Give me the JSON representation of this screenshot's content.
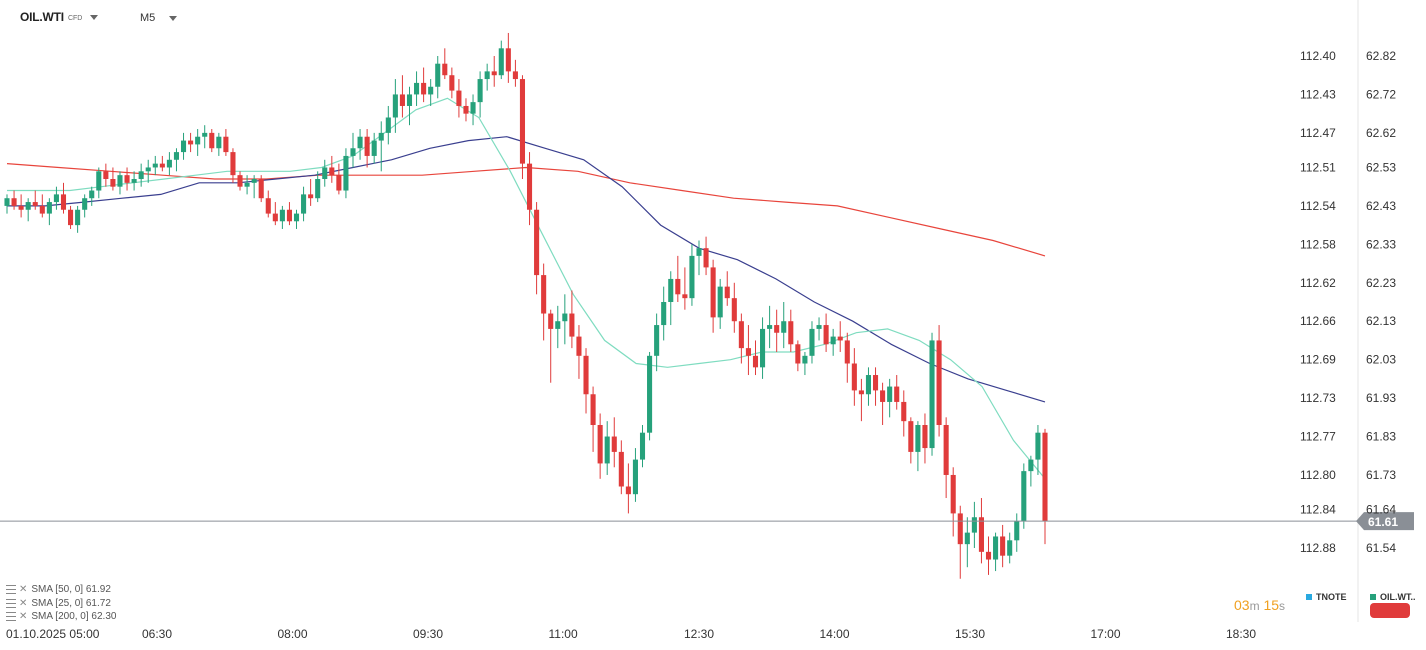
{
  "header": {
    "symbol": "OIL.WTI",
    "symbol_type": "CFD",
    "timeframe": "M5"
  },
  "indicators": [
    {
      "text": "SMA  [50,  0]  61.92"
    },
    {
      "text": "SMA  [25,  0]  61.72"
    },
    {
      "text": "SMA  [200,  0]  62.30"
    }
  ],
  "timer": {
    "minutes": "03",
    "m": "m",
    "seconds": "15",
    "s": "s"
  },
  "legend": {
    "tnote": "TNOTE",
    "oil": "OIL.WT.."
  },
  "colors": {
    "up": "#26a17b",
    "down": "#e03b3b",
    "sma25": "#7fdcc0",
    "sma50": "#3a3f8f",
    "sma200": "#e8453c",
    "tnote": "#29a9e0"
  },
  "chart_data": {
    "type": "candlestick",
    "symbol": "OIL.WTI",
    "timeframe": "M5",
    "x_ticks": [
      "01.10.2025  05:00",
      "06:30",
      "08:00",
      "09:30",
      "11:00",
      "12:30",
      "14:00",
      "15:30",
      "17:00",
      "18:30"
    ],
    "y_right_ticks": [
      62.82,
      62.72,
      62.62,
      62.53,
      62.43,
      62.33,
      62.23,
      62.13,
      62.03,
      61.93,
      61.83,
      61.73,
      61.64,
      61.54
    ],
    "y_left_ticks": [
      "112.40",
      "112.43",
      "112.47",
      "112.51",
      "112.54",
      "112.58",
      "112.62",
      "112.66",
      "112.69",
      "112.73",
      "112.77",
      "112.80",
      "112.84",
      "112.88"
    ],
    "ylim": [
      61.43,
      62.95
    ],
    "current_price": "61.61",
    "ohlc": [
      [
        62.43,
        62.46,
        62.41,
        62.45
      ],
      [
        62.45,
        62.47,
        62.42,
        62.43
      ],
      [
        62.43,
        62.46,
        62.4,
        62.42
      ],
      [
        62.42,
        62.45,
        62.39,
        62.44
      ],
      [
        62.44,
        62.47,
        62.42,
        62.43
      ],
      [
        62.43,
        62.46,
        62.4,
        62.41
      ],
      [
        62.41,
        62.45,
        62.38,
        62.44
      ],
      [
        62.44,
        62.48,
        62.42,
        62.46
      ],
      [
        62.46,
        62.49,
        62.41,
        62.42
      ],
      [
        62.42,
        62.43,
        62.37,
        62.38
      ],
      [
        62.38,
        62.43,
        62.36,
        62.42
      ],
      [
        62.42,
        62.46,
        62.4,
        62.45
      ],
      [
        62.45,
        62.48,
        62.43,
        62.47
      ],
      [
        62.47,
        62.53,
        62.45,
        62.52
      ],
      [
        62.52,
        62.54,
        62.48,
        62.5
      ],
      [
        62.5,
        62.53,
        62.47,
        62.48
      ],
      [
        62.48,
        62.52,
        62.46,
        62.51
      ],
      [
        62.51,
        62.53,
        62.47,
        62.49
      ],
      [
        62.49,
        62.52,
        62.47,
        62.5
      ],
      [
        62.5,
        62.54,
        62.48,
        62.52
      ],
      [
        62.52,
        62.55,
        62.49,
        62.53
      ],
      [
        62.53,
        62.56,
        62.51,
        62.54
      ],
      [
        62.54,
        62.56,
        62.52,
        62.53
      ],
      [
        62.53,
        62.57,
        62.51,
        62.55
      ],
      [
        62.55,
        62.58,
        62.52,
        62.57
      ],
      [
        62.57,
        62.62,
        62.55,
        62.6
      ],
      [
        62.6,
        62.62,
        62.57,
        62.59
      ],
      [
        62.59,
        62.63,
        62.56,
        62.61
      ],
      [
        62.61,
        62.64,
        62.58,
        62.62
      ],
      [
        62.62,
        62.63,
        62.57,
        62.58
      ],
      [
        62.58,
        62.62,
        62.56,
        62.61
      ],
      [
        62.61,
        62.63,
        62.56,
        62.57
      ],
      [
        62.57,
        62.58,
        62.49,
        62.51
      ],
      [
        62.51,
        62.52,
        62.47,
        62.48
      ],
      [
        62.48,
        62.51,
        62.46,
        62.49
      ],
      [
        62.49,
        62.51,
        62.45,
        62.5
      ],
      [
        62.5,
        62.51,
        62.44,
        62.45
      ],
      [
        62.45,
        62.47,
        62.4,
        62.41
      ],
      [
        62.41,
        62.44,
        62.38,
        62.39
      ],
      [
        62.39,
        62.43,
        62.37,
        62.42
      ],
      [
        62.42,
        62.44,
        62.38,
        62.39
      ],
      [
        62.39,
        62.42,
        62.37,
        62.41
      ],
      [
        62.41,
        62.48,
        62.39,
        62.46
      ],
      [
        62.46,
        62.5,
        62.43,
        62.45
      ],
      [
        62.45,
        62.52,
        62.44,
        62.5
      ],
      [
        62.5,
        62.55,
        62.48,
        62.53
      ],
      [
        62.53,
        62.56,
        62.49,
        62.51
      ],
      [
        62.51,
        62.54,
        62.46,
        62.47
      ],
      [
        62.47,
        62.58,
        62.45,
        62.56
      ],
      [
        62.56,
        62.62,
        62.53,
        62.58
      ],
      [
        62.58,
        62.63,
        62.55,
        62.61
      ],
      [
        62.61,
        62.63,
        62.53,
        62.56
      ],
      [
        62.56,
        62.62,
        62.54,
        62.6
      ],
      [
        62.6,
        62.65,
        62.52,
        62.62
      ],
      [
        62.62,
        62.69,
        62.59,
        62.66
      ],
      [
        62.66,
        62.76,
        62.62,
        62.72
      ],
      [
        62.72,
        62.77,
        62.66,
        62.69
      ],
      [
        62.69,
        62.74,
        62.64,
        62.72
      ],
      [
        62.72,
        62.78,
        62.69,
        62.75
      ],
      [
        62.75,
        62.79,
        62.7,
        62.72
      ],
      [
        62.72,
        62.76,
        62.69,
        62.74
      ],
      [
        62.74,
        62.82,
        62.71,
        62.8
      ],
      [
        62.8,
        62.84,
        62.76,
        62.77
      ],
      [
        62.77,
        62.79,
        62.71,
        62.73
      ],
      [
        62.73,
        62.76,
        62.66,
        62.69
      ],
      [
        62.69,
        62.71,
        62.65,
        62.67
      ],
      [
        62.67,
        62.72,
        62.64,
        62.7
      ],
      [
        62.7,
        62.78,
        62.66,
        62.76
      ],
      [
        62.76,
        62.8,
        62.73,
        62.78
      ],
      [
        62.78,
        62.82,
        62.74,
        62.77
      ],
      [
        62.77,
        62.86,
        62.76,
        62.84
      ],
      [
        62.84,
        62.88,
        62.75,
        62.78
      ],
      [
        62.78,
        62.81,
        62.74,
        62.76
      ],
      [
        62.76,
        62.77,
        62.5,
        62.54
      ],
      [
        62.54,
        62.57,
        62.38,
        62.42
      ],
      [
        62.42,
        62.44,
        62.2,
        62.25
      ],
      [
        62.25,
        62.28,
        62.08,
        62.15
      ],
      [
        62.15,
        62.16,
        61.97,
        62.11
      ],
      [
        62.11,
        62.17,
        62.06,
        62.13
      ],
      [
        62.13,
        62.2,
        62.07,
        62.15
      ],
      [
        62.15,
        62.21,
        62.06,
        62.09
      ],
      [
        62.09,
        62.12,
        61.98,
        62.04
      ],
      [
        62.04,
        62.06,
        61.89,
        61.94
      ],
      [
        61.94,
        61.96,
        61.79,
        61.86
      ],
      [
        61.86,
        61.89,
        61.72,
        61.76
      ],
      [
        61.76,
        61.87,
        61.73,
        61.83
      ],
      [
        61.83,
        61.88,
        61.75,
        61.79
      ],
      [
        61.79,
        61.82,
        61.68,
        61.7
      ],
      [
        61.7,
        61.76,
        61.63,
        61.68
      ],
      [
        61.68,
        61.8,
        61.66,
        61.77
      ],
      [
        61.77,
        61.86,
        61.75,
        61.84
      ],
      [
        61.84,
        62.05,
        61.82,
        62.04
      ],
      [
        62.04,
        62.15,
        62.0,
        62.12
      ],
      [
        62.12,
        62.22,
        62.08,
        62.18
      ],
      [
        62.18,
        62.26,
        62.12,
        62.24
      ],
      [
        62.24,
        62.3,
        62.18,
        62.2
      ],
      [
        62.2,
        62.27,
        62.16,
        62.19
      ],
      [
        62.19,
        62.33,
        62.17,
        62.3
      ],
      [
        62.3,
        62.34,
        62.25,
        62.32
      ],
      [
        62.32,
        62.35,
        62.25,
        62.27
      ],
      [
        62.27,
        62.29,
        62.1,
        62.14
      ],
      [
        62.14,
        62.24,
        62.11,
        62.22
      ],
      [
        62.22,
        62.26,
        62.17,
        62.19
      ],
      [
        62.19,
        62.23,
        62.1,
        62.13
      ],
      [
        62.13,
        62.15,
        62.02,
        62.06
      ],
      [
        62.06,
        62.12,
        61.99,
        62.04
      ],
      [
        62.04,
        62.08,
        61.99,
        62.01
      ],
      [
        62.01,
        62.14,
        61.98,
        62.11
      ],
      [
        62.11,
        62.17,
        62.06,
        62.12
      ],
      [
        62.12,
        62.16,
        62.05,
        62.1
      ],
      [
        62.1,
        62.18,
        62.06,
        62.13
      ],
      [
        62.13,
        62.16,
        62.05,
        62.07
      ],
      [
        62.07,
        62.08,
        62.0,
        62.02
      ],
      [
        62.02,
        62.05,
        61.99,
        62.04
      ],
      [
        62.04,
        62.13,
        62.02,
        62.11
      ],
      [
        62.11,
        62.14,
        62.08,
        62.12
      ],
      [
        62.12,
        62.15,
        62.05,
        62.07
      ],
      [
        62.07,
        62.11,
        62.04,
        62.09
      ],
      [
        62.09,
        62.13,
        62.05,
        62.08
      ],
      [
        62.08,
        62.1,
        61.97,
        62.02
      ],
      [
        62.02,
        62.06,
        61.91,
        61.95
      ],
      [
        61.95,
        61.98,
        61.87,
        61.94
      ],
      [
        61.94,
        62.01,
        61.91,
        61.99
      ],
      [
        61.99,
        62.01,
        61.91,
        61.95
      ],
      [
        61.95,
        61.97,
        61.86,
        61.92
      ],
      [
        61.92,
        61.98,
        61.88,
        61.96
      ],
      [
        61.96,
        61.99,
        61.9,
        61.92
      ],
      [
        61.92,
        61.95,
        61.83,
        61.87
      ],
      [
        61.87,
        61.88,
        61.76,
        61.79
      ],
      [
        61.79,
        61.87,
        61.74,
        61.86
      ],
      [
        61.86,
        61.89,
        61.76,
        61.8
      ],
      [
        61.8,
        62.1,
        61.78,
        62.08
      ],
      [
        62.08,
        62.12,
        61.83,
        61.86
      ],
      [
        61.86,
        61.88,
        61.67,
        61.73
      ],
      [
        61.73,
        61.75,
        61.57,
        61.63
      ],
      [
        61.63,
        61.65,
        61.46,
        61.55
      ],
      [
        61.55,
        61.62,
        61.49,
        61.58
      ],
      [
        61.58,
        61.66,
        61.54,
        61.62
      ],
      [
        61.62,
        61.67,
        61.5,
        61.53
      ],
      [
        61.53,
        61.57,
        61.47,
        61.51
      ],
      [
        61.51,
        61.58,
        61.48,
        61.57
      ],
      [
        61.57,
        61.6,
        61.49,
        61.52
      ],
      [
        61.52,
        61.58,
        61.5,
        61.56
      ],
      [
        61.56,
        61.63,
        61.53,
        61.61
      ],
      [
        61.61,
        61.76,
        61.59,
        61.74
      ],
      [
        61.74,
        61.78,
        61.7,
        61.77
      ],
      [
        61.77,
        61.86,
        61.73,
        61.84
      ],
      [
        61.84,
        61.85,
        61.55,
        61.61
      ]
    ],
    "series": [
      {
        "name": "SMA [25, 0]",
        "values": [
          62.47,
          62.47,
          62.47,
          62.48,
          62.49,
          62.5,
          62.51,
          62.52,
          62.52,
          62.52,
          62.53,
          62.56,
          62.62,
          62.68,
          62.71,
          62.66,
          62.52,
          62.36,
          62.2,
          62.08,
          62.02,
          62.01,
          62.02,
          62.03,
          62.05,
          62.05,
          62.07,
          62.1,
          62.11,
          62.08,
          62.03,
          61.96,
          61.82,
          61.72
        ]
      },
      {
        "name": "SMA [50, 0]",
        "values": [
          62.43,
          62.43,
          62.44,
          62.45,
          62.46,
          62.49,
          62.49,
          62.5,
          62.51,
          62.53,
          62.55,
          62.58,
          62.6,
          62.61,
          62.58,
          62.55,
          62.48,
          62.38,
          62.32,
          62.29,
          62.24,
          62.18,
          62.13,
          62.07,
          62.02,
          61.98,
          61.95,
          61.92
        ]
      },
      {
        "name": "SMA [200, 0]",
        "values": [
          62.54,
          62.53,
          62.52,
          62.51,
          62.5,
          62.5,
          62.51,
          62.51,
          62.51,
          62.52,
          62.53,
          62.52,
          62.49,
          62.47,
          62.45,
          62.44,
          62.43,
          62.4,
          62.37,
          62.34,
          62.3
        ]
      }
    ]
  }
}
